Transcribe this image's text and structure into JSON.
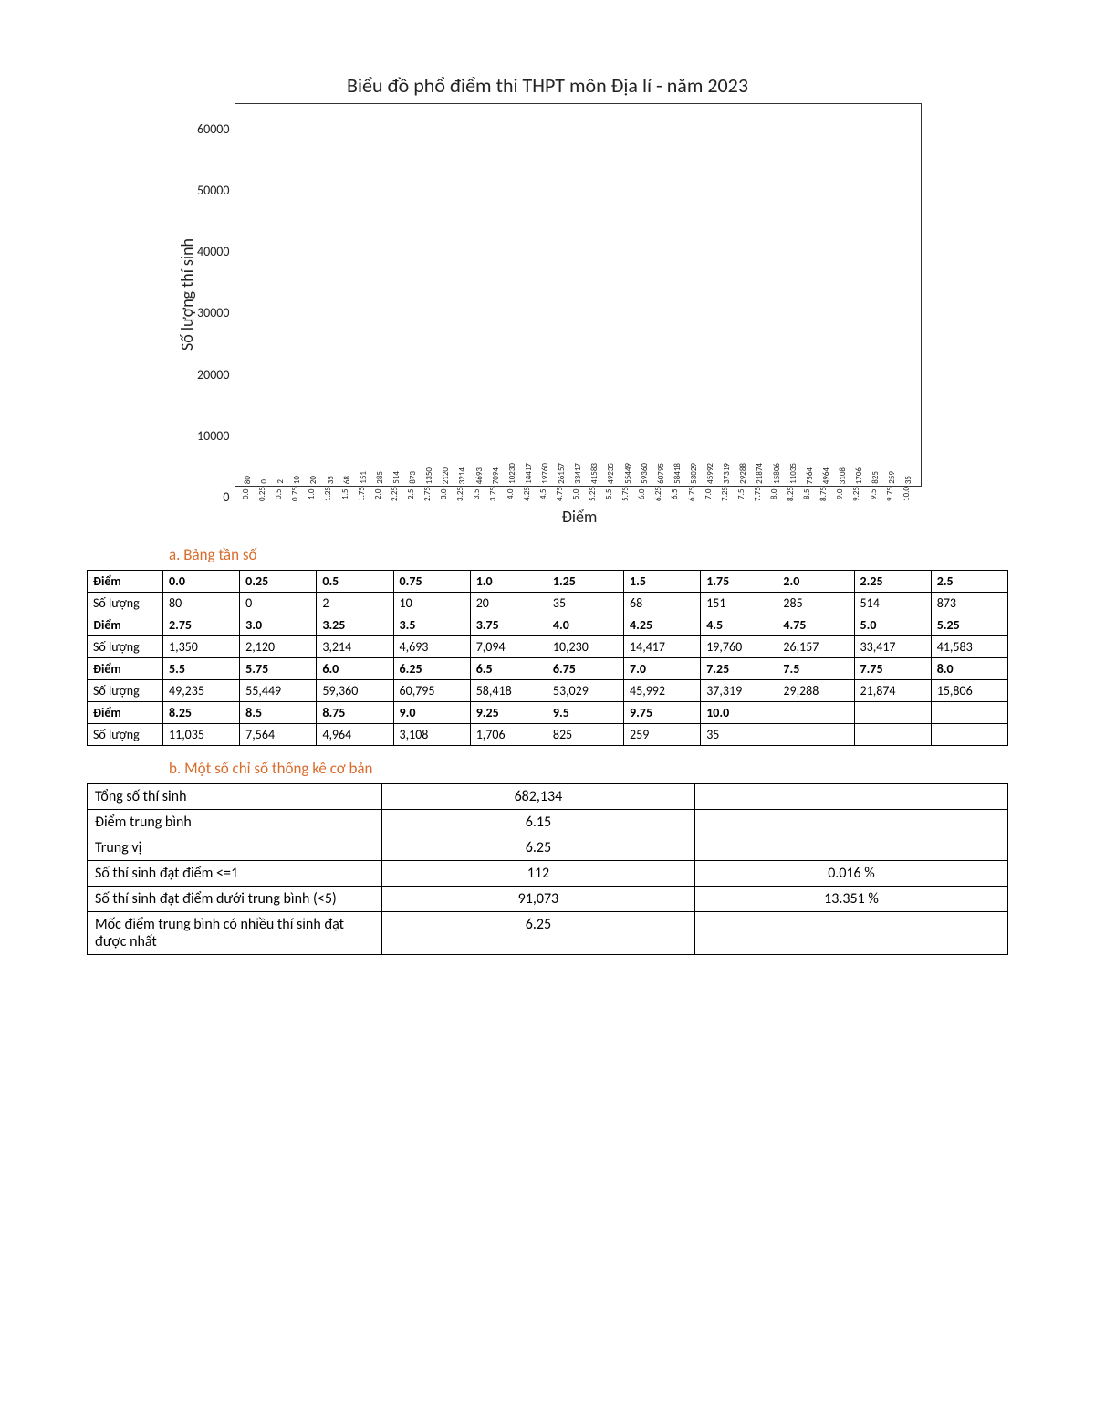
{
  "chart": {
    "type": "bar",
    "title": "Biểu đồ phổ điểm thi THPT môn Địa lí - năm 2023",
    "ylabel": "Số lượng thí sinh",
    "xlabel": "Điểm",
    "bar_color": "#3b78b5",
    "border_color": "#333333",
    "background_color": "#ffffff",
    "title_fontsize": 22,
    "label_fontsize": 18,
    "tick_fontsize": 9,
    "bar_width": 0.78,
    "ylim": [
      0,
      63000
    ],
    "yticks": [
      0,
      10000,
      20000,
      30000,
      40000,
      50000,
      60000
    ],
    "categories": [
      "0.0",
      "0.25",
      "0.5",
      "0.75",
      "1.0",
      "1.25",
      "1.5",
      "1.75",
      "2.0",
      "2.25",
      "2.5",
      "2.75",
      "3.0",
      "3.25",
      "3.5",
      "3.75",
      "4.0",
      "4.25",
      "4.5",
      "4.75",
      "5.0",
      "5.25",
      "5.5",
      "5.75",
      "6.0",
      "6.25",
      "6.5",
      "6.75",
      "7.0",
      "7.25",
      "7.5",
      "7.75",
      "8.0",
      "8.25",
      "8.5",
      "8.75",
      "9.0",
      "9.25",
      "9.5",
      "9.75",
      "10.0"
    ],
    "values": [
      80,
      0,
      2,
      10,
      20,
      35,
      68,
      151,
      285,
      514,
      873,
      1350,
      2120,
      3214,
      4693,
      7094,
      10230,
      14417,
      19760,
      26157,
      33417,
      41583,
      49235,
      55449,
      59360,
      60795,
      58418,
      53029,
      45992,
      37319,
      29288,
      21874,
      15806,
      11035,
      7564,
      4964,
      3108,
      1706,
      825,
      259,
      35
    ]
  },
  "sections": {
    "a": "a.   Bảng tần số",
    "b": "b.   Một số chỉ số thống kê cơ bản"
  },
  "freq_table": {
    "row_label_score": "Điểm",
    "row_label_count": "Số lượng",
    "rows": [
      {
        "scores": [
          "0.0",
          "0.25",
          "0.5",
          "0.75",
          "1.0",
          "1.25",
          "1.5",
          "1.75",
          "2.0",
          "2.25",
          "2.5"
        ],
        "counts": [
          "80",
          "0",
          "2",
          "10",
          "20",
          "35",
          "68",
          "151",
          "285",
          "514",
          "873"
        ]
      },
      {
        "scores": [
          "2.75",
          "3.0",
          "3.25",
          "3.5",
          "3.75",
          "4.0",
          "4.25",
          "4.5",
          "4.75",
          "5.0",
          "5.25"
        ],
        "counts": [
          "1,350",
          "2,120",
          "3,214",
          "4,693",
          "7,094",
          "10,230",
          "14,417",
          "19,760",
          "26,157",
          "33,417",
          "41,583"
        ]
      },
      {
        "scores": [
          "5.5",
          "5.75",
          "6.0",
          "6.25",
          "6.5",
          "6.75",
          "7.0",
          "7.25",
          "7.5",
          "7.75",
          "8.0"
        ],
        "counts": [
          "49,235",
          "55,449",
          "59,360",
          "60,795",
          "58,418",
          "53,029",
          "45,992",
          "37,319",
          "29,288",
          "21,874",
          "15,806"
        ]
      },
      {
        "scores": [
          "8.25",
          "8.5",
          "8.75",
          "9.0",
          "9.25",
          "9.5",
          "9.75",
          "10.0",
          "",
          "",
          ""
        ],
        "counts": [
          "11,035",
          "7,564",
          "4,964",
          "3,108",
          "1,706",
          "825",
          "259",
          "35",
          "",
          "",
          ""
        ]
      }
    ]
  },
  "stats": [
    {
      "k": "Tổng số thí sinh",
      "v": "682,134",
      "p": ""
    },
    {
      "k": "Điểm trung bình",
      "v": "6.15",
      "p": ""
    },
    {
      "k": "Trung vị",
      "v": "6.25",
      "p": ""
    },
    {
      "k": "Số thí sinh đạt điểm <=1",
      "v": "112",
      "p": "0.016 %"
    },
    {
      "k": "Số thí sinh đạt điểm dưới trung bình (<5)",
      "v": "91,073",
      "p": "13.351 %"
    },
    {
      "k": "Mốc điểm trung bình có nhiều thí sinh đạt được nhất",
      "v": "6.25",
      "p": ""
    }
  ]
}
